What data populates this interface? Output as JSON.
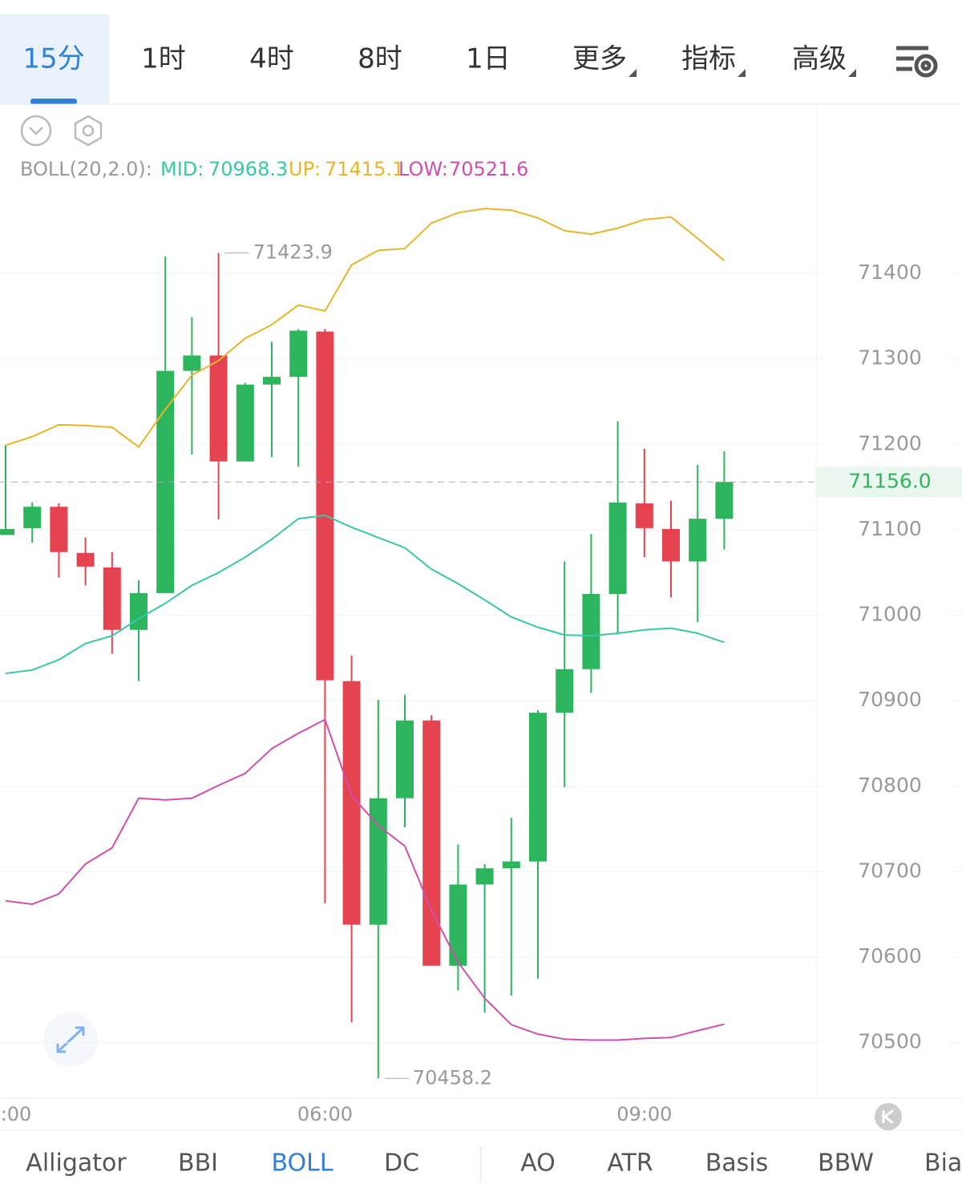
{
  "tabs": [
    "15分",
    "1时",
    "4时",
    "8时",
    "1日",
    "更多",
    "指标",
    "高级"
  ],
  "indicator_label": "BOLL(20,2.0):",
  "chart_data": {
    "type": "candlestick",
    "categories": [
      ":00",
      null,
      null,
      null,
      null,
      null,
      null,
      null,
      null,
      null,
      null,
      null,
      "06:00",
      null,
      null,
      null,
      null,
      null,
      null,
      null,
      null,
      null,
      null,
      null,
      "09:00",
      null,
      null,
      null
    ],
    "open": [
      71094,
      71102,
      71127,
      71073,
      71056,
      70983,
      71026,
      71286,
      71304,
      71180,
      71270,
      71279,
      71332,
      70923,
      70638,
      70786,
      70877,
      70590,
      70685,
      70704,
      70712,
      70886,
      70937,
      71025,
      71131,
      71101,
      71063,
      71113
    ],
    "high": [
      71199,
      71132,
      71131,
      71091,
      71074,
      71041,
      71420,
      71349,
      71423.9,
      71272,
      71320,
      71335,
      71335,
      70953,
      70901,
      70907,
      70883,
      70732,
      70709,
      70763,
      70889,
      71063,
      71095,
      71227,
      71195,
      71134,
      71176,
      71192
    ],
    "low": [
      71094,
      71085,
      71044,
      71035,
      70955,
      70923,
      71026,
      71188,
      71112,
      71180,
      71185,
      71174,
      70663,
      70524,
      70458.2,
      70752,
      70590,
      70561,
      70535,
      70555,
      70575,
      70799,
      70909,
      70979,
      71068,
      71021,
      70992,
      71077
    ],
    "close": [
      71101,
      71127,
      71074,
      71057,
      70983,
      71026,
      71286,
      71304,
      71180,
      71270,
      71279,
      71333,
      70924,
      70638,
      70786,
      70877,
      70590,
      70685,
      70704,
      70712,
      70886,
      70937,
      71025,
      71132,
      71102,
      71063,
      71113,
      71156
    ],
    "up_color": "#2db55d",
    "down_color": "#e5434f",
    "series": [
      {
        "name": "MID:",
        "color": "#39c7a5",
        "values": [
          70932,
          70936,
          70948,
          70967,
          70976,
          70996,
          71014,
          71035,
          71050,
          71068,
          71089,
          71113,
          71117,
          71103,
          71091,
          71079,
          71054,
          71037,
          71018,
          70998,
          70986,
          70977,
          70976,
          70979,
          70983,
          70985,
          70979,
          70968.3
        ]
      },
      {
        "name": "UP:",
        "color": "#e8b52a",
        "values": [
          71199,
          71209,
          71223,
          71222,
          71220,
          71197,
          71241,
          71281,
          71298,
          71324,
          71340,
          71363,
          71356,
          71410,
          71427,
          71429,
          71459,
          71471,
          71476,
          71474,
          71465,
          71450,
          71446,
          71453,
          71463,
          71466,
          71441,
          71415.1
        ]
      },
      {
        "name": "LOW:",
        "color": "#cf4fae",
        "values": [
          70666,
          70662,
          70674,
          70709,
          70728,
          70786,
          70784,
          70786,
          70801,
          70815,
          70844,
          70862,
          70878,
          70789,
          70754,
          70730,
          70655,
          70594,
          70552,
          70521,
          70510,
          70504,
          70503,
          70503,
          70505,
          70506,
          70514,
          70521.6
        ]
      }
    ],
    "ylim": [
      70435,
      71598
    ],
    "yticks": [
      70500,
      70600,
      70700,
      70800,
      70900,
      71000,
      71100,
      71200,
      71300,
      71400
    ],
    "grid": true,
    "last_price": {
      "value": 71156,
      "label": "71156.0"
    }
  },
  "indicators": [
    "Alligator",
    "BBI",
    "BOLL",
    "DC",
    "AO",
    "ATR",
    "Basis",
    "BBW",
    "Bias"
  ]
}
